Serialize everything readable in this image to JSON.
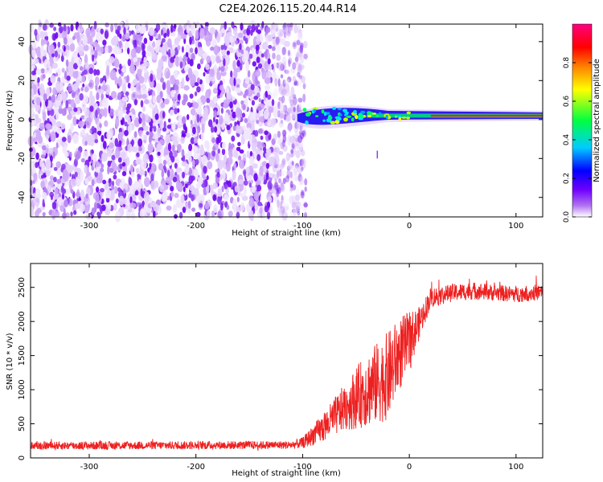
{
  "title": "C2E4.2026.115.20.44.R14",
  "colors": {
    "snr_line": "#ee2020",
    "scatter": "#7a2ef0",
    "colormap": [
      "#ffffff",
      "#b070f0",
      "#7000ff",
      "#0000ff",
      "#00ccff",
      "#00ff40",
      "#ffff00",
      "#ff8000",
      "#ff0000",
      "#ff0080"
    ]
  },
  "chart_data": [
    {
      "type": "heatmap",
      "panel": "spectrum",
      "xlabel": "Height of straight line (km)",
      "ylabel": "Frequency (Hz)",
      "xlim": [
        -355,
        125
      ],
      "ylim": [
        -50,
        49
      ],
      "x_ticks": [
        -300,
        -200,
        -100,
        0,
        100
      ],
      "y_ticks": [
        -40,
        -20,
        0,
        20,
        40
      ],
      "x_tick_labels": [
        "-300",
        "-200",
        "-100",
        "0",
        "100"
      ],
      "y_tick_labels": [
        "-40",
        "-20",
        "0",
        "20",
        "40"
      ],
      "noise_region_x": [
        -355,
        -97
      ],
      "signal_region_x": [
        -105,
        125
      ],
      "signal_frequency_hz": 2,
      "colorbar": {
        "label": "Normalized spectral amplitude",
        "range": [
          0,
          1
        ],
        "ticks": [
          0.0,
          0.2,
          0.4,
          0.6,
          0.8
        ],
        "tick_labels": [
          "0.0",
          "0.2",
          "0.4",
          "0.6",
          "0.8"
        ]
      }
    },
    {
      "type": "line",
      "panel": "snr",
      "xlabel": "Height of straight line (km)",
      "ylabel": "SNR (10 * v/v)",
      "xlim": [
        -355,
        125
      ],
      "ylim": [
        0,
        2850
      ],
      "x_ticks": [
        -300,
        -200,
        -100,
        0,
        100
      ],
      "y_ticks": [
        0,
        500,
        1000,
        1500,
        2000,
        2500
      ],
      "x_tick_labels": [
        "-300",
        "-200",
        "-100",
        "0",
        "100"
      ],
      "y_tick_labels": [
        "0",
        "500",
        "1000",
        "1500",
        "2000",
        "2500"
      ],
      "series": [
        {
          "name": "SNR",
          "x": [
            -355,
            -300,
            -200,
            -110,
            -100,
            -80,
            -60,
            -40,
            -20,
            -10,
            0,
            10,
            20,
            40,
            60,
            80,
            100,
            125
          ],
          "y": [
            180,
            180,
            185,
            190,
            220,
            450,
            750,
            1000,
            1200,
            1500,
            1700,
            2000,
            2350,
            2420,
            2450,
            2420,
            2400,
            2430
          ],
          "noise_amplitude": [
            60,
            60,
            60,
            60,
            80,
            220,
            350,
            550,
            650,
            550,
            450,
            220,
            150,
            130,
            130,
            120,
            120,
            120
          ]
        }
      ]
    }
  ]
}
